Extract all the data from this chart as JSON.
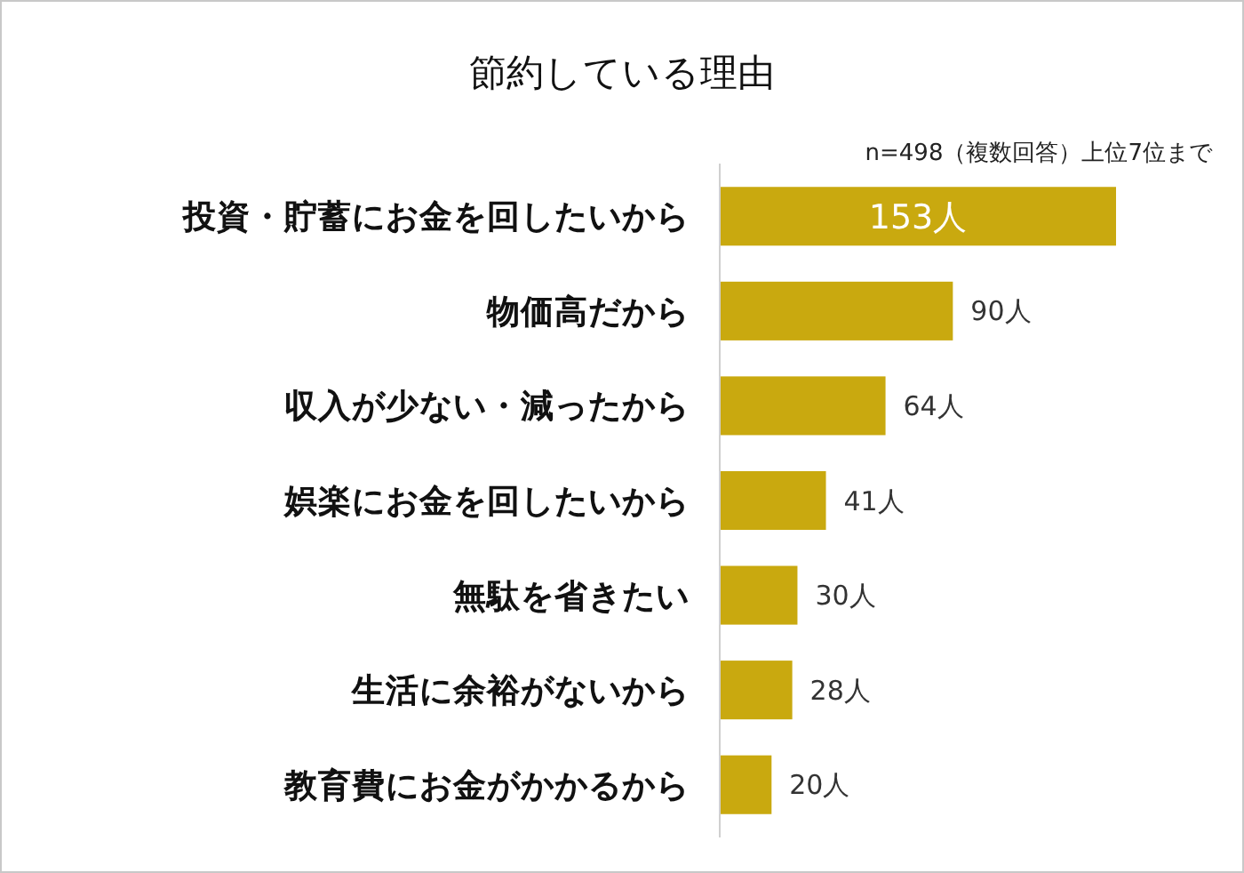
{
  "chart_data": {
    "type": "bar",
    "orientation": "horizontal",
    "title": "節約している理由",
    "subtitle": "n=498（複数回答）上位7位まで",
    "categories": [
      "投資・貯蓄にお金を回したいから",
      "物価高だから",
      "収入が少ない・減ったから",
      "娯楽にお金を回したいから",
      "無駄を省きたい",
      "生活に余裕がないから",
      "教育費にお金がかかるから"
    ],
    "values": [
      153,
      90,
      64,
      41,
      30,
      28,
      20
    ],
    "value_labels": [
      "153人",
      "90人",
      "64人",
      "41人",
      "30人",
      "28人",
      "20人"
    ],
    "color": "#c9a90f"
  }
}
